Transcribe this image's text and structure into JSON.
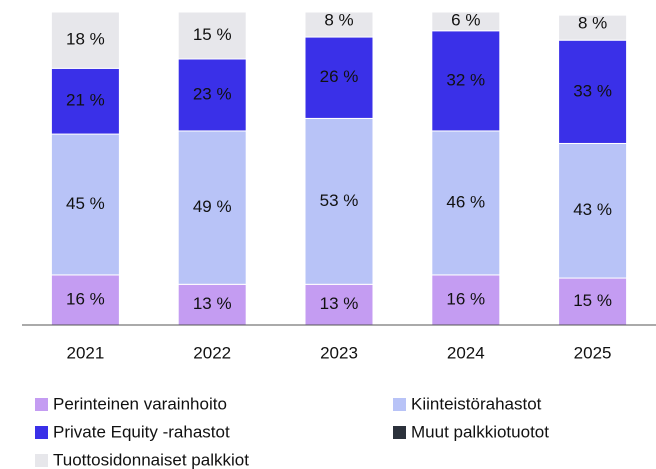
{
  "chart_data": {
    "type": "stacked_bar",
    "categories": [
      "2021",
      "2022",
      "2023",
      "2024",
      "2025"
    ],
    "series": [
      {
        "name": "Perinteinen varainhoito",
        "color": "#c49cf2",
        "values": [
          16,
          13,
          13,
          16,
          15
        ],
        "value_labels": [
          "16 %",
          "13 %",
          "13 %",
          "16 %",
          "15 %"
        ]
      },
      {
        "name": "Kiinteistörahastot",
        "color": "#b8c3f7",
        "values": [
          45,
          49,
          53,
          46,
          43
        ],
        "value_labels": [
          "45 %",
          "49 %",
          "53 %",
          "46 %",
          "43 %"
        ]
      },
      {
        "name": "Private Equity -rahastot",
        "color": "#3a30e8",
        "values": [
          21,
          23,
          26,
          32,
          33
        ],
        "value_labels": [
          "21 %",
          "23 %",
          "26 %",
          "32 %",
          "33 %"
        ]
      },
      {
        "name": "Muut palkkiotuotot",
        "color": "#2b313b",
        "values": [
          0,
          0,
          0,
          0,
          0
        ]
      },
      {
        "name": "Tuottosidonnaiset palkkiot",
        "color": "#e7e7eb",
        "values": [
          18,
          15,
          8,
          6,
          8
        ],
        "value_labels": [
          "18 %",
          "15 %",
          "8 %",
          "6 %",
          "8 %"
        ]
      }
    ],
    "ylim": [
      0,
      100
    ]
  }
}
